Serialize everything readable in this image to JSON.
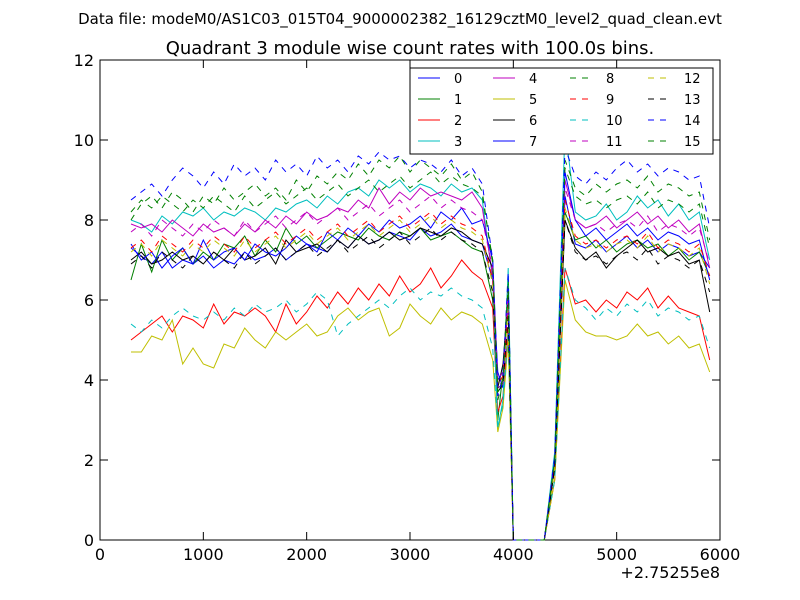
{
  "chart_data": {
    "type": "line",
    "suptitle": "Data file: modeM0/AS1C03_015T04_9000002382_16129cztM0_level2_quad_clean.evt",
    "title": "Quadrant 3 module wise count rates with 100.0s bins.",
    "xlabel": "",
    "ylabel": "",
    "x_offset_label": "+2.75255e8",
    "xlim": [
      0,
      6000
    ],
    "ylim": [
      0,
      12
    ],
    "x_ticks": [
      0,
      1000,
      2000,
      3000,
      4000,
      5000,
      6000
    ],
    "y_ticks": [
      0,
      2,
      4,
      6,
      8,
      10,
      12
    ],
    "x": [
      300,
      400,
      500,
      600,
      700,
      800,
      900,
      1000,
      1100,
      1200,
      1300,
      1400,
      1500,
      1600,
      1700,
      1800,
      1900,
      2000,
      2100,
      2200,
      2300,
      2400,
      2500,
      2600,
      2700,
      2800,
      2900,
      3000,
      3100,
      3200,
      3300,
      3400,
      3500,
      3600,
      3700,
      3800,
      3850,
      3900,
      3950,
      4000,
      4100,
      4200,
      4300,
      4400,
      4500,
      4600,
      4700,
      4800,
      4900,
      5000,
      5100,
      5200,
      5300,
      5400,
      5500,
      5600,
      5700,
      5800,
      5900
    ],
    "legend_location": "upper right",
    "series": [
      {
        "name": "0",
        "color": "#0000ff",
        "dash": "solid",
        "values": [
          7.3,
          7.1,
          6.9,
          7.2,
          6.8,
          7.0,
          6.9,
          7.1,
          6.8,
          7.0,
          6.9,
          7.2,
          7.0,
          7.1,
          7.3,
          7.0,
          7.2,
          7.4,
          7.3,
          7.2,
          7.5,
          7.3,
          7.6,
          7.4,
          7.5,
          7.7,
          7.6,
          7.5,
          7.8,
          7.6,
          7.7,
          7.9,
          7.6,
          7.5,
          7.4,
          6.5,
          4.2,
          3.8,
          6.2,
          0,
          0,
          0,
          0,
          2.0,
          8.6,
          7.4,
          7.3,
          7.5,
          7.2,
          7.4,
          7.6,
          7.3,
          7.5,
          7.2,
          7.4,
          7.3,
          7.1,
          7.2,
          6.8
        ]
      },
      {
        "name": "1",
        "color": "#008000",
        "dash": "solid",
        "values": [
          6.5,
          7.4,
          6.7,
          7.5,
          7.0,
          7.3,
          6.9,
          7.2,
          7.0,
          7.4,
          7.3,
          7.6,
          7.1,
          7.5,
          7.2,
          7.8,
          7.4,
          7.6,
          7.3,
          7.5,
          7.7,
          7.6,
          7.5,
          7.8,
          7.6,
          7.5,
          7.7,
          7.6,
          7.8,
          7.5,
          7.6,
          7.7,
          7.5,
          7.3,
          7.2,
          6.0,
          3.0,
          4.2,
          6.5,
          0,
          0,
          0,
          0,
          1.8,
          8.2,
          7.5,
          7.6,
          7.3,
          7.5,
          7.2,
          7.4,
          7.5,
          7.3,
          7.4,
          7.1,
          7.3,
          7.0,
          7.2,
          6.6
        ]
      },
      {
        "name": "2",
        "color": "#ff0000",
        "dash": "solid",
        "values": [
          5.0,
          5.2,
          5.4,
          5.6,
          5.2,
          5.6,
          5.5,
          5.3,
          5.9,
          5.4,
          5.7,
          5.6,
          5.8,
          5.6,
          5.2,
          5.9,
          5.4,
          5.7,
          6.1,
          5.8,
          6.2,
          5.9,
          6.3,
          6.0,
          6.4,
          6.1,
          6.6,
          6.2,
          6.4,
          6.8,
          6.3,
          6.6,
          7.0,
          6.7,
          6.5,
          5.8,
          3.2,
          3.6,
          5.3,
          0,
          0,
          0,
          0,
          1.5,
          6.8,
          5.9,
          6.0,
          5.7,
          6.0,
          5.8,
          6.2,
          6.0,
          6.3,
          5.8,
          6.1,
          5.8,
          5.7,
          5.6,
          4.5
        ]
      },
      {
        "name": "3",
        "color": "#00bfbf",
        "dash": "solid",
        "values": [
          8.0,
          7.9,
          7.7,
          8.1,
          7.9,
          8.2,
          8.1,
          8.3,
          8.0,
          8.2,
          8.1,
          8.3,
          8.2,
          8.0,
          8.3,
          8.2,
          8.4,
          8.5,
          8.3,
          8.6,
          8.4,
          8.7,
          8.8,
          8.6,
          9.0,
          8.8,
          9.0,
          8.7,
          8.9,
          8.8,
          8.6,
          8.9,
          8.7,
          8.8,
          8.5,
          6.5,
          2.8,
          3.5,
          6.8,
          0,
          0,
          0,
          0,
          2.2,
          10.3,
          8.2,
          8.0,
          8.1,
          8.4,
          8.0,
          8.2,
          8.6,
          8.3,
          8.5,
          8.1,
          8.4,
          8.0,
          8.2,
          7.0
        ]
      },
      {
        "name": "4",
        "color": "#bf00bf",
        "dash": "solid",
        "values": [
          7.9,
          7.8,
          7.9,
          7.7,
          8.0,
          7.8,
          7.6,
          7.9,
          7.7,
          7.8,
          7.6,
          7.9,
          7.7,
          8.0,
          7.8,
          8.1,
          7.9,
          8.2,
          8.0,
          8.1,
          8.3,
          8.2,
          8.5,
          8.3,
          8.8,
          8.4,
          8.7,
          8.5,
          8.8,
          8.6,
          8.7,
          8.6,
          8.5,
          8.7,
          8.3,
          6.6,
          3.8,
          3.9,
          6.0,
          0,
          0,
          0,
          0,
          1.9,
          9.0,
          8.0,
          7.8,
          7.9,
          8.1,
          7.8,
          8.0,
          8.2,
          7.9,
          8.1,
          7.8,
          8.0,
          7.7,
          7.9,
          6.8
        ]
      },
      {
        "name": "5",
        "color": "#bfbf00",
        "dash": "solid",
        "values": [
          4.7,
          4.7,
          5.1,
          5.0,
          5.5,
          4.4,
          4.8,
          4.4,
          4.3,
          4.9,
          4.8,
          5.3,
          5.0,
          4.8,
          5.2,
          5.0,
          5.2,
          5.4,
          5.1,
          5.2,
          5.6,
          5.8,
          5.5,
          5.7,
          5.8,
          5.1,
          5.3,
          5.9,
          5.6,
          5.4,
          5.8,
          5.5,
          5.7,
          5.6,
          5.4,
          4.5,
          2.7,
          3.3,
          5.0,
          0,
          0,
          0,
          0,
          1.5,
          6.5,
          5.5,
          5.2,
          5.1,
          5.1,
          5.0,
          5.1,
          5.4,
          5.1,
          5.2,
          4.9,
          5.1,
          4.8,
          4.9,
          4.2
        ]
      },
      {
        "name": "6",
        "color": "#000000",
        "dash": "solid",
        "values": [
          7.0,
          7.2,
          6.9,
          7.0,
          7.2,
          7.0,
          7.1,
          6.9,
          7.2,
          7.0,
          7.3,
          7.0,
          7.1,
          7.3,
          6.9,
          7.5,
          7.2,
          7.3,
          7.4,
          7.2,
          7.5,
          7.3,
          7.6,
          7.4,
          7.5,
          7.7,
          7.5,
          7.6,
          7.8,
          7.7,
          7.6,
          7.8,
          7.7,
          7.5,
          7.4,
          6.8,
          3.8,
          4.4,
          6.1,
          0,
          0,
          0,
          0,
          1.8,
          8.0,
          7.3,
          7.0,
          7.2,
          6.8,
          7.1,
          7.3,
          7.5,
          7.2,
          7.3,
          7.1,
          7.2,
          6.9,
          7.0,
          5.7
        ]
      },
      {
        "name": "7",
        "color": "#0000ff",
        "dash": "solid",
        "values": [
          7.4,
          7.0,
          7.2,
          6.8,
          7.1,
          7.3,
          6.9,
          7.5,
          7.0,
          7.2,
          7.3,
          7.0,
          7.4,
          7.2,
          7.1,
          7.3,
          7.6,
          7.4,
          7.2,
          7.7,
          7.5,
          7.8,
          7.6,
          7.9,
          7.7,
          8.0,
          7.8,
          7.9,
          8.1,
          7.8,
          8.2,
          8.0,
          8.3,
          7.9,
          8.0,
          7.0,
          4.0,
          4.2,
          6.0,
          0,
          0,
          0,
          0,
          2.0,
          9.2,
          8.0,
          7.6,
          7.8,
          7.5,
          7.7,
          7.9,
          7.6,
          7.8,
          7.5,
          7.7,
          7.6,
          7.4,
          7.5,
          6.5
        ]
      },
      {
        "name": "8",
        "color": "#008000",
        "dash": "dashed",
        "values": [
          8.0,
          8.4,
          8.6,
          8.3,
          8.7,
          8.5,
          8.2,
          8.6,
          8.4,
          8.8,
          8.5,
          8.7,
          8.9,
          8.6,
          8.8,
          8.5,
          9.0,
          8.7,
          9.1,
          8.9,
          9.2,
          9.0,
          9.4,
          9.1,
          9.5,
          9.3,
          9.6,
          9.2,
          9.5,
          9.3,
          9.1,
          9.4,
          9.0,
          9.2,
          8.7,
          6.9,
          3.5,
          4.0,
          6.5,
          0,
          0,
          0,
          0,
          2.0,
          9.5,
          8.8,
          8.6,
          8.9,
          8.7,
          8.9,
          9.0,
          8.8,
          9.1,
          8.7,
          8.9,
          8.8,
          8.6,
          8.7,
          7.5
        ]
      },
      {
        "name": "9",
        "color": "#ff0000",
        "dash": "dashed",
        "values": [
          7.3,
          7.5,
          7.2,
          7.6,
          7.4,
          7.2,
          7.5,
          7.3,
          7.6,
          7.4,
          7.2,
          7.6,
          7.3,
          7.5,
          7.7,
          7.4,
          7.6,
          7.8,
          7.5,
          7.7,
          7.9,
          7.6,
          7.8,
          8.0,
          7.7,
          7.9,
          8.1,
          7.8,
          8.0,
          8.2,
          7.9,
          8.1,
          7.9,
          7.8,
          7.6,
          6.5,
          3.9,
          4.1,
          5.9,
          0,
          0,
          0,
          0,
          1.9,
          8.5,
          7.6,
          7.4,
          7.5,
          7.3,
          7.5,
          7.6,
          7.4,
          7.7,
          7.3,
          7.5,
          7.4,
          7.2,
          7.4,
          6.6
        ]
      },
      {
        "name": "10",
        "color": "#00bfbf",
        "dash": "dashed",
        "values": [
          5.4,
          5.2,
          5.5,
          5.3,
          5.6,
          5.8,
          5.6,
          5.5,
          5.7,
          5.5,
          5.8,
          5.6,
          5.9,
          5.7,
          5.8,
          6.0,
          5.7,
          5.9,
          6.2,
          6.0,
          5.1,
          5.4,
          5.6,
          5.8,
          6.0,
          5.8,
          6.1,
          6.3,
          6.0,
          6.2,
          6.1,
          6.3,
          6.1,
          6.0,
          5.8,
          4.8,
          2.8,
          3.4,
          5.2,
          0,
          0,
          0,
          0,
          1.5,
          6.8,
          6.0,
          5.8,
          5.5,
          5.8,
          5.6,
          5.9,
          5.7,
          6.0,
          5.6,
          5.8,
          5.7,
          5.5,
          5.6,
          4.8
        ]
      },
      {
        "name": "11",
        "color": "#bf00bf",
        "dash": "dashed",
        "values": [
          7.7,
          7.9,
          7.6,
          8.0,
          7.8,
          7.6,
          7.9,
          7.7,
          8.0,
          7.8,
          7.6,
          8.0,
          7.7,
          7.9,
          8.1,
          7.8,
          8.0,
          8.2,
          7.9,
          8.1,
          8.3,
          8.0,
          8.2,
          8.4,
          8.1,
          8.3,
          8.5,
          8.2,
          8.4,
          8.6,
          8.3,
          8.5,
          8.3,
          8.2,
          8.0,
          6.8,
          4.0,
          4.2,
          6.2,
          0,
          0,
          0,
          0,
          1.9,
          8.8,
          8.0,
          7.8,
          7.9,
          7.7,
          7.9,
          8.0,
          7.8,
          8.1,
          7.7,
          7.9,
          7.8,
          7.6,
          7.8,
          6.9
        ]
      },
      {
        "name": "12",
        "color": "#bfbf00",
        "dash": "dashed",
        "values": [
          7.2,
          7.4,
          7.1,
          7.5,
          7.3,
          7.1,
          7.4,
          7.2,
          7.5,
          7.3,
          7.1,
          7.5,
          7.2,
          7.4,
          7.6,
          7.3,
          7.5,
          7.7,
          7.4,
          7.6,
          7.8,
          7.5,
          7.7,
          7.9,
          7.6,
          7.8,
          8.0,
          7.7,
          7.9,
          8.1,
          7.8,
          8.0,
          7.8,
          7.7,
          7.5,
          6.4,
          3.8,
          4.0,
          5.8,
          0,
          0,
          0,
          0,
          1.8,
          8.3,
          7.5,
          7.3,
          7.4,
          7.2,
          7.4,
          7.5,
          7.3,
          7.6,
          7.2,
          7.4,
          7.3,
          7.1,
          7.3,
          6.4
        ]
      },
      {
        "name": "13",
        "color": "#000000",
        "dash": "dashed",
        "values": [
          6.9,
          7.1,
          6.8,
          7.2,
          7.0,
          6.8,
          7.1,
          6.9,
          7.2,
          7.0,
          6.8,
          7.2,
          6.9,
          7.1,
          7.3,
          7.0,
          7.2,
          7.4,
          7.1,
          7.3,
          7.5,
          7.2,
          7.4,
          7.6,
          7.3,
          7.5,
          7.7,
          7.4,
          7.6,
          7.8,
          7.5,
          7.7,
          7.5,
          7.4,
          7.2,
          6.2,
          3.7,
          3.9,
          5.6,
          0,
          0,
          0,
          0,
          1.8,
          8.0,
          7.2,
          7.0,
          7.1,
          6.9,
          7.1,
          7.2,
          7.0,
          7.3,
          6.9,
          7.1,
          7.0,
          6.8,
          7.0,
          6.2
        ]
      },
      {
        "name": "14",
        "color": "#0000ff",
        "dash": "dashed",
        "values": [
          8.5,
          8.7,
          8.9,
          8.6,
          9.0,
          9.3,
          9.1,
          8.8,
          9.2,
          8.9,
          9.4,
          9.1,
          9.3,
          9.0,
          9.5,
          9.2,
          9.4,
          9.1,
          9.6,
          9.3,
          9.5,
          9.2,
          9.6,
          9.4,
          9.7,
          9.5,
          9.6,
          9.3,
          9.5,
          9.4,
          9.2,
          9.5,
          9.1,
          9.3,
          8.9,
          7.0,
          3.6,
          4.1,
          6.7,
          0,
          0,
          0,
          0,
          2.1,
          9.8,
          9.1,
          8.9,
          9.2,
          9.0,
          9.3,
          9.5,
          9.2,
          9.4,
          9.1,
          9.3,
          9.2,
          9.0,
          9.1,
          7.8
        ]
      },
      {
        "name": "15",
        "color": "#008000",
        "dash": "dashed",
        "values": [
          8.2,
          8.5,
          8.3,
          8.6,
          8.4,
          8.2,
          8.5,
          8.3,
          8.6,
          8.4,
          8.2,
          8.6,
          8.3,
          8.5,
          8.7,
          8.4,
          8.6,
          8.8,
          8.5,
          8.7,
          8.9,
          8.6,
          8.8,
          9.0,
          8.7,
          8.9,
          9.1,
          8.8,
          9.0,
          9.2,
          8.9,
          9.1,
          8.9,
          8.8,
          8.6,
          7.0,
          3.7,
          4.0,
          6.4,
          0,
          0,
          0,
          0,
          2.0,
          9.3,
          8.6,
          8.4,
          8.5,
          8.3,
          8.5,
          8.6,
          8.4,
          8.7,
          8.3,
          8.5,
          8.4,
          8.2,
          8.4,
          7.3
        ]
      }
    ]
  }
}
